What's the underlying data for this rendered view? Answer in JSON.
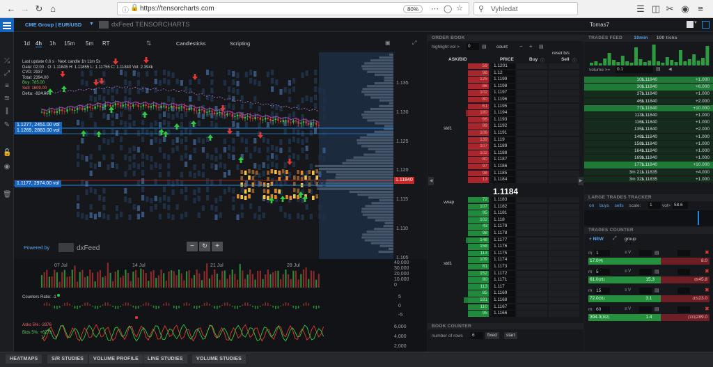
{
  "browser": {
    "url": "https://tensorcharts.com",
    "zoom": "80%",
    "search_placeholder": "Vyhledat"
  },
  "header": {
    "instrument": "CME Group | EUR/USD",
    "logo": "dxFeed TENSORCHARTS",
    "user": "Tomas7"
  },
  "chart": {
    "timeframes": [
      "1d",
      "4h",
      "1h",
      "15m",
      "5m",
      "RT"
    ],
    "tabs": [
      "Candlesticks",
      "Scripting"
    ],
    "info": {
      "line1": "Last update 0.6 s · Next candle 1h 11m 5s",
      "line2": "Date: 02:00 · O: 1.11845 H: 1.11855 L: 1.11755 C: 1.11840 Vol: 2.394k",
      "line3": "CVD: 2937",
      "line4": "Total: 2394.00",
      "line5": "Buy: 785.00",
      "line6": "Sell: 1609.00",
      "line7": "Delta: -824.00"
    },
    "level_labels": [
      "1.1277, 2451.00 vol",
      "1.1269, 2883.00 vol",
      "1.1177, 2974.00 vol"
    ],
    "price_axis": [
      "1.135",
      "1.130",
      "1.125",
      "1.120",
      "1.115",
      "1.110",
      "1.105"
    ],
    "current_price": "1.11840",
    "date_axis": [
      "07 Jul",
      "14 Jul",
      "21 Jul",
      "28 Jul"
    ],
    "volume_axis": [
      "40,000",
      "30,000",
      "20,000",
      "10,000",
      "0"
    ],
    "counters_label": "Counters Ratio: -1",
    "counters_axis": [
      "5",
      "0",
      "-5"
    ],
    "asks_label": "Asks 5%: -3376",
    "bids_label": "Bids 5%: +6273",
    "asks_axis": [
      "6,000",
      "4,000",
      "2,000"
    ],
    "powered_by": "Powered by",
    "powered_logo": "dxFeed"
  },
  "orderbook": {
    "title": "ORDER BOOK",
    "highlight_label": "highlight vol >",
    "highlight_value": "0",
    "count_label": "count",
    "reset_label": "reset b/s",
    "col_askbid": "ASK/BID",
    "col_price": "PRICE",
    "col_buy": "Buy",
    "col_sell": "Sell",
    "label_std1_top": "std1",
    "label_vwap": "vwap",
    "label_std1_bottom": "std1",
    "mid_price": "1.1184",
    "asks": [
      {
        "size": "59",
        "price": "1.1201",
        "bar": 0
      },
      {
        "size": "98",
        "price": "1.12",
        "bar": 0
      },
      {
        "size": "125",
        "price": "1.1199",
        "bar": 0
      },
      {
        "size": "86",
        "price": "1.1198",
        "bar": 0
      },
      {
        "size": "102",
        "price": "1.1197",
        "bar": 0
      },
      {
        "size": "80",
        "price": "1.1196",
        "bar": 0
      },
      {
        "size": "61",
        "price": "1.1195",
        "bar": 0
      },
      {
        "size": "180",
        "price": "1.1194",
        "bar": 0.55
      },
      {
        "size": "66",
        "price": "1.1193",
        "bar": 0
      },
      {
        "size": "99",
        "price": "1.1192",
        "bar": 0.25
      },
      {
        "size": "106",
        "price": "1.1191",
        "bar": 0.2
      },
      {
        "size": "139",
        "price": "1.119",
        "bar": 0
      },
      {
        "size": "107",
        "price": "1.1189",
        "bar": 0.3
      },
      {
        "size": "102",
        "price": "1.1188",
        "bar": 0.3
      },
      {
        "size": "80",
        "price": "1.1187",
        "bar": 0.12
      },
      {
        "size": "97",
        "price": "1.1186",
        "bar": 0.08
      },
      {
        "size": "98",
        "price": "1.1185",
        "bar": 0.25
      },
      {
        "size": "13",
        "price": "1.1184",
        "bar": 0.25
      }
    ],
    "bids": [
      {
        "size": "72",
        "price": "1.1183",
        "bar": 0
      },
      {
        "size": "107",
        "price": "1.1182",
        "bar": 0
      },
      {
        "size": "95",
        "price": "1.1181",
        "bar": 0
      },
      {
        "size": "102",
        "price": "1.118",
        "bar": 0
      },
      {
        "size": "43",
        "price": "1.1179",
        "bar": 0
      },
      {
        "size": "98",
        "price": "1.1178",
        "bar": 0.2
      },
      {
        "size": "148",
        "price": "1.1177",
        "bar": 0.55
      },
      {
        "size": "158",
        "price": "1.1176",
        "bar": 0.5
      },
      {
        "size": "113",
        "price": "1.1175",
        "bar": 0.3
      },
      {
        "size": "109",
        "price": "1.1174",
        "bar": 0.22
      },
      {
        "size": "81",
        "price": "1.1173",
        "bar": 0
      },
      {
        "size": "152",
        "price": "1.1172",
        "bar": 0.15
      },
      {
        "size": "80",
        "price": "1.1171",
        "bar": 0
      },
      {
        "size": "113",
        "price": "1.117",
        "bar": 0.15
      },
      {
        "size": "85",
        "price": "1.1169",
        "bar": 0.15
      },
      {
        "size": "181",
        "price": "1.1168",
        "bar": 0.6
      },
      {
        "size": "110",
        "price": "1.1167",
        "bar": 0.1
      },
      {
        "size": "95",
        "price": "1.1166",
        "bar": 0
      }
    ],
    "book_counter_title": "BOOK COUNTER",
    "rows_label": "number of rows",
    "rows_value": "6",
    "fixed_label": "fixed",
    "start_label": "start"
  },
  "trades_feed": {
    "title": "TRADES FEED",
    "tab_time": "10min",
    "tab_ticks": "100 ticks",
    "filter_label": "volume >=",
    "filter_value": "0.1",
    "rows": [
      {
        "t": "10s",
        "p": "1.11840",
        "v": "+1.000",
        "hl": true
      },
      {
        "t": "30s",
        "p": "1.11840",
        "v": "+6.000",
        "hl": true
      },
      {
        "t": "37s",
        "p": "1.11840",
        "v": "+1.000",
        "hl": false
      },
      {
        "t": "46s",
        "p": "1.11840",
        "v": "+2.000",
        "hl": false
      },
      {
        "t": "77s",
        "p": "1.11840",
        "v": "+10.000",
        "hl": true
      },
      {
        "t": "113s",
        "p": "1.11840",
        "v": "+1.000",
        "hl": false
      },
      {
        "t": "116s",
        "p": "1.11840",
        "v": "+1.000",
        "hl": false
      },
      {
        "t": "135s",
        "p": "1.11840",
        "v": "+2.000",
        "hl": false
      },
      {
        "t": "148s",
        "p": "1.11840",
        "v": "+1.000",
        "hl": false
      },
      {
        "t": "158s",
        "p": "1.11840",
        "v": "+1.000",
        "hl": false
      },
      {
        "t": "164s",
        "p": "1.11840",
        "v": "+1.000",
        "hl": false
      },
      {
        "t": "169s",
        "p": "1.11840",
        "v": "+1.000",
        "hl": false
      },
      {
        "t": "177s",
        "p": "1.11840",
        "v": "+10.000",
        "hl": true
      },
      {
        "t": "3m 21s",
        "p": "1.11835",
        "v": "+4.000",
        "hl": false
      },
      {
        "t": "3m 32s",
        "p": "1.11835",
        "v": "+1.000",
        "hl": false
      }
    ]
  },
  "large_trades": {
    "title": "LARGE TRADES TRACKER",
    "on": "on",
    "buys": "buys",
    "sells": "sells",
    "scale_label": "scale:",
    "scale_value": "1",
    "vol_label": "vol>",
    "vol_value": "58.6"
  },
  "trades_counter": {
    "title": "TRADES COUNTER",
    "new_label": "+ NEW",
    "group_label": "group",
    "counters": [
      {
        "m": "1",
        "buy": "17.0",
        "buy_n": "(4)",
        "mid": "",
        "sell": "8.0",
        "sell_n": "",
        "buy_frac": 0.6
      },
      {
        "m": "5",
        "buy": "61.0",
        "buy_n": "(21)",
        "mid": "15.3",
        "sell": "45.8",
        "sell_n": "(8)",
        "buy_frac": 0.6
      },
      {
        "m": "15",
        "buy": "72.0",
        "buy_n": "(31)",
        "mid": "3.1",
        "sell": "23.0",
        "sell_n": "(15)",
        "buy_frac": 0.6
      },
      {
        "m": "60",
        "buy": "394.0",
        "buy_n": "(162)",
        "mid": "1.4",
        "sell": "289.0",
        "sell_n": "(133)",
        "buy_frac": 0.6
      }
    ]
  },
  "bottom_tabs": [
    "HEATMAPS",
    "S/R STUDIES",
    "VOLUME PROFILE",
    "LINE STUDIES",
    "VOLUME STUDIES"
  ],
  "colors": {
    "accent": "#1e88e5",
    "buy": "#1b8a3a",
    "sell": "#b3262d",
    "up_arrow": "#2ecc40",
    "down_arrow": "#e53935"
  }
}
